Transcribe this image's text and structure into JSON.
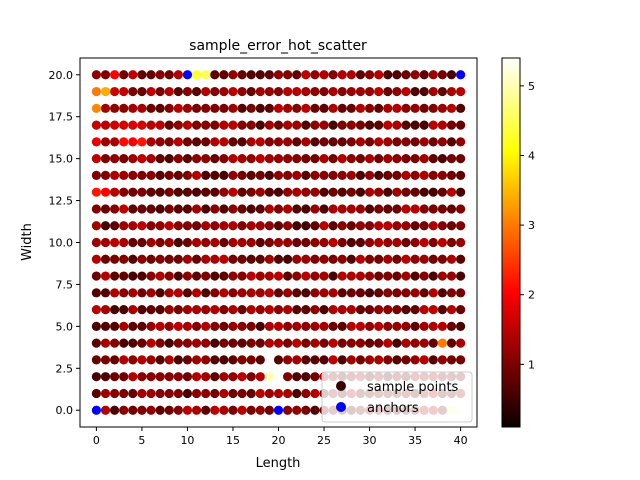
{
  "chart_data": {
    "type": "scatter",
    "title": "sample_error_hot_scatter",
    "xlabel": "Length",
    "ylabel": "Width",
    "xlim": [
      -1.8,
      41.8
    ],
    "ylim": [
      -1.0,
      21.0
    ],
    "x_ticks": [
      0,
      5,
      10,
      15,
      20,
      25,
      30,
      35,
      40
    ],
    "y_ticks": [
      0.0,
      2.5,
      5.0,
      7.5,
      10.0,
      12.5,
      15.0,
      17.5,
      20.0
    ],
    "x_tick_labels": [
      "0",
      "5",
      "10",
      "15",
      "20",
      "25",
      "30",
      "35",
      "40"
    ],
    "y_tick_labels": [
      "0.0",
      "2.5",
      "5.0",
      "7.5",
      "10.0",
      "12.5",
      "15.0",
      "17.5",
      "20.0"
    ],
    "grid": {
      "x_start": 0,
      "x_end": 40,
      "x_step": 1,
      "y_start": 0,
      "y_end": 20,
      "y_step": 1,
      "missing_points": [
        [
          19,
          3
        ],
        [
          20,
          2
        ]
      ]
    },
    "colormap": "hot",
    "colorbar": {
      "min": 0.1,
      "max": 5.4,
      "ticks": [
        1,
        2,
        3,
        4,
        5
      ],
      "tick_labels": [
        "1",
        "2",
        "3",
        "4",
        "5"
      ]
    },
    "series": [
      {
        "name": "sample points",
        "color_value_note": "error values mapped through the hot colormap; most points near 0.5-1.5",
        "highlight_values": [
          {
            "x": 0,
            "y": 19,
            "v": 3.0
          },
          {
            "x": 1,
            "y": 19,
            "v": 3.4
          },
          {
            "x": 0,
            "y": 18,
            "v": 3.1
          },
          {
            "x": 0,
            "y": 13,
            "v": 2.2
          },
          {
            "x": 1,
            "y": 13,
            "v": 2.0
          },
          {
            "x": 2,
            "y": 20,
            "v": 2.0
          },
          {
            "x": 3,
            "y": 16,
            "v": 2.1
          },
          {
            "x": 4,
            "y": 16,
            "v": 2.0
          },
          {
            "x": 5,
            "y": 16,
            "v": 2.2
          },
          {
            "x": 11,
            "y": 20,
            "v": 4.3
          },
          {
            "x": 12,
            "y": 20,
            "v": 4.5
          },
          {
            "x": 19,
            "y": 2,
            "v": 5.0
          },
          {
            "x": 38,
            "y": 4,
            "v": 3.0
          },
          {
            "x": 40,
            "y": 0,
            "v": 5.3
          },
          {
            "x": 39,
            "y": 0,
            "v": 4.9
          }
        ]
      },
      {
        "name": "anchors",
        "color": "#0000ff",
        "points": [
          [
            0,
            0
          ],
          [
            10,
            20
          ],
          [
            20,
            0
          ],
          [
            40,
            20
          ]
        ]
      }
    ],
    "legend": {
      "placement": "lower-right",
      "entries": [
        "sample points",
        "anchors"
      ]
    }
  }
}
